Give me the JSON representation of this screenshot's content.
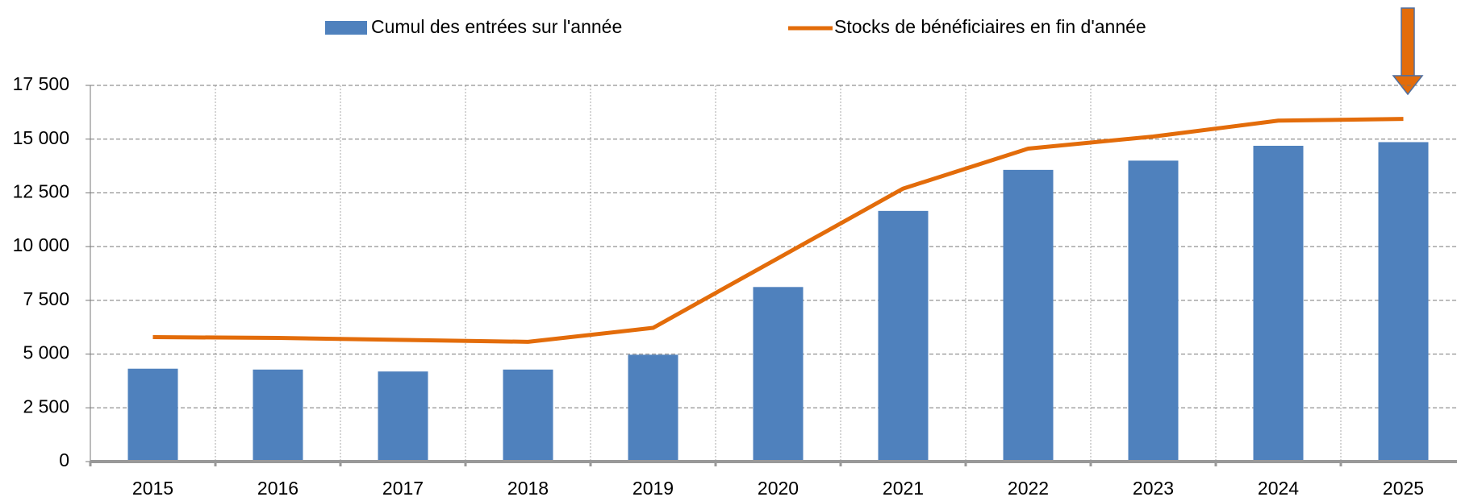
{
  "chart_data": {
    "type": "bar_line",
    "categories": [
      "2015",
      "2016",
      "2017",
      "2018",
      "2019",
      "2020",
      "2021",
      "2022",
      "2023",
      "2024",
      "2025"
    ],
    "series": [
      {
        "name": "Cumul des entrées sur l'année",
        "type": "bar",
        "color": "#4f81bd",
        "values": [
          4320,
          4280,
          4190,
          4280,
          4970,
          8120,
          11660,
          13570,
          14000,
          14690,
          14860
        ]
      },
      {
        "name": "Stocks de bénéficiaires en fin d'année",
        "type": "line",
        "color": "#e36c0a",
        "values": [
          5790,
          5750,
          5660,
          5570,
          6220,
          9460,
          12700,
          14560,
          15120,
          15860,
          15940
        ]
      }
    ],
    "ylim": [
      0,
      17500
    ],
    "yticks": [
      {
        "value": 0,
        "label": "0"
      },
      {
        "value": 2500,
        "label": "2 500"
      },
      {
        "value": 5000,
        "label": "5 000"
      },
      {
        "value": 7500,
        "label": "7 500"
      },
      {
        "value": 10000,
        "label": "10 000"
      },
      {
        "value": 12500,
        "label": "12 500"
      },
      {
        "value": 15000,
        "label": "15 000"
      },
      {
        "value": 17500,
        "label": "17 500"
      }
    ],
    "grid": true
  }
}
